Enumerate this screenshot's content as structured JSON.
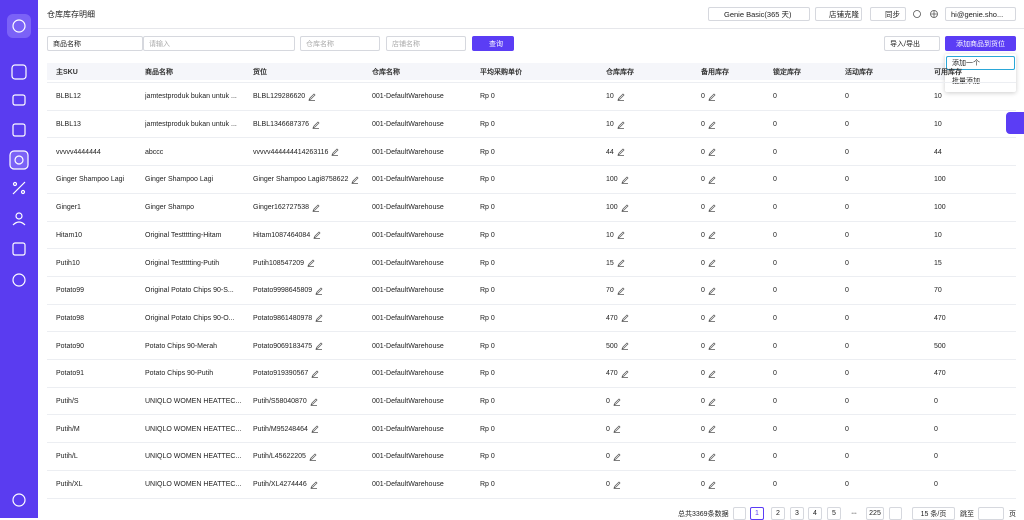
{
  "header": {
    "title": "仓库库存明细",
    "plan": "Genie Basic(365 天)",
    "clone": "店铺克隆",
    "sync": "同步",
    "user": "hi@genie.sho..."
  },
  "filters": {
    "field": "商品名称",
    "placeholder": "请输入",
    "warehouse": "仓库名称",
    "store": "店铺名称",
    "search": "查询",
    "import_export": "导入/导出",
    "add_button": "添加商品到货位",
    "menu": [
      "添加一个",
      "批量添加"
    ]
  },
  "table": {
    "columns": [
      "主SKU",
      "商品名称",
      "货位",
      "仓库名称",
      "平均采购单价",
      "仓库库存",
      "备用库存",
      "锁定库存",
      "活动库存",
      "可用库存"
    ],
    "rows": [
      [
        "BLBL12",
        "jamtestproduk bukan untuk ...",
        "BLBL129286620",
        "001-DefaultWarehouse",
        "Rp 0",
        "10",
        "0",
        "0",
        "0",
        "10"
      ],
      [
        "BLBL13",
        "jamtestproduk bukan untuk ...",
        "BLBL1346687376",
        "001-DefaultWarehouse",
        "Rp 0",
        "10",
        "0",
        "0",
        "0",
        "10"
      ],
      [
        "vvvvv4444444",
        "abccc",
        "vvvvv444444414263116",
        "001-DefaultWarehouse",
        "Rp 0",
        "44",
        "0",
        "0",
        "0",
        "44"
      ],
      [
        "Ginger Shampoo Lagi",
        "Ginger Shampoo Lagi",
        "Ginger Shampoo Lagi8758622",
        "001-DefaultWarehouse",
        "Rp 0",
        "100",
        "0",
        "0",
        "0",
        "100"
      ],
      [
        "Ginger1",
        "Ginger Shampo",
        "Ginger162727538",
        "001-DefaultWarehouse",
        "Rp 0",
        "100",
        "0",
        "0",
        "0",
        "100"
      ],
      [
        "Hitam10",
        "Original Testtttting-Hitam",
        "Hitam1087464084",
        "001-DefaultWarehouse",
        "Rp 0",
        "10",
        "0",
        "0",
        "0",
        "10"
      ],
      [
        "Putih10",
        "Original Testtttting-Putih",
        "Putih108547209",
        "001-DefaultWarehouse",
        "Rp 0",
        "15",
        "0",
        "0",
        "0",
        "15"
      ],
      [
        "Potato99",
        "Original Potato Chips 90-S...",
        "Potato9998645809",
        "001-DefaultWarehouse",
        "Rp 0",
        "70",
        "0",
        "0",
        "0",
        "70"
      ],
      [
        "Potato98",
        "Original Potato Chips 90-O...",
        "Potato9861480978",
        "001-DefaultWarehouse",
        "Rp 0",
        "470",
        "0",
        "0",
        "0",
        "470"
      ],
      [
        "Potato90",
        "Potato Chips 90-Merah",
        "Potato9069183475",
        "001-DefaultWarehouse",
        "Rp 0",
        "500",
        "0",
        "0",
        "0",
        "500"
      ],
      [
        "Potato91",
        "Potato Chips 90-Putih",
        "Potato919390567",
        "001-DefaultWarehouse",
        "Rp 0",
        "470",
        "0",
        "0",
        "0",
        "470"
      ],
      [
        "Putih/S",
        "UNIQLO WOMEN HEATTEC...",
        "Putih/S58040870",
        "001-DefaultWarehouse",
        "Rp 0",
        "0",
        "0",
        "0",
        "0",
        "0"
      ],
      [
        "Putih/M",
        "UNIQLO WOMEN HEATTEC...",
        "Putih/M95248464",
        "001-DefaultWarehouse",
        "Rp 0",
        "0",
        "0",
        "0",
        "0",
        "0"
      ],
      [
        "Putih/L",
        "UNIQLO WOMEN HEATTEC...",
        "Putih/L45622205",
        "001-DefaultWarehouse",
        "Rp 0",
        "0",
        "0",
        "0",
        "0",
        "0"
      ],
      [
        "Putih/XL",
        "UNIQLO WOMEN HEATTEC...",
        "Putih/XL4274446",
        "001-DefaultWarehouse",
        "Rp 0",
        "0",
        "0",
        "0",
        "0",
        "0"
      ]
    ]
  },
  "pagination": {
    "total": "总共3369条数据",
    "pages": [
      "1",
      "2",
      "3",
      "4",
      "5"
    ],
    "ellipsis": "•••",
    "last": "225",
    "page_size": "15 条/页",
    "jump": "跳至",
    "page_unit": "页"
  }
}
